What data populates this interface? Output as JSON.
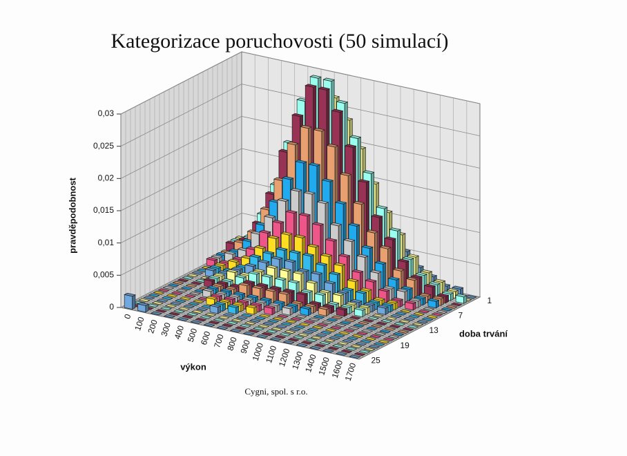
{
  "chart_data": {
    "type": "bar3d",
    "title": "Kategorizace poruchovosti (50 simulací)",
    "y_label": "pravděpodobnost",
    "x_label": "výkon",
    "z_label": "doba trvání",
    "footer": "Cygni, spol. s r.o.",
    "categories": [
      "0",
      "100",
      "200",
      "300",
      "400",
      "500",
      "600",
      "700",
      "800",
      "900",
      "1000",
      "1100",
      "1200",
      "1300",
      "1400",
      "1500",
      "1600",
      "1700"
    ],
    "ylim": [
      0,
      0.03
    ],
    "yticks": [
      0,
      {
        "value": 0.005,
        "label": "0,005"
      },
      {
        "value": 0.01,
        "label": "0,01"
      },
      {
        "value": 0.015,
        "label": "0,015"
      },
      {
        "value": 0.02,
        "label": "0,02"
      },
      {
        "value": 0.025,
        "label": "0,025"
      },
      {
        "value": 0.03,
        "label": "0,03"
      }
    ],
    "grid": true,
    "series": [
      {
        "name": "1",
        "color": "#6fa8dc",
        "values": [
          0.001,
          0.002,
          0.004,
          0.007,
          0.011,
          0.015,
          0.018,
          0.018,
          0.016,
          0.013,
          0.01,
          0.007,
          0.005,
          0.003,
          0.002,
          0.001,
          0.001,
          0
        ]
      },
      {
        "name": null,
        "color": "#ffff99",
        "values": [
          0.002,
          0.003,
          0.006,
          0.011,
          0.017,
          0.023,
          0.027,
          0.027,
          0.024,
          0.02,
          0.015,
          0.011,
          0.008,
          0.005,
          0.003,
          0.002,
          0.001,
          0
        ]
      },
      {
        "name": null,
        "color": "#99ffee",
        "values": [
          0.002,
          0.003,
          0.007,
          0.012,
          0.019,
          0.026,
          0.03,
          0.03,
          0.027,
          0.022,
          0.017,
          0.012,
          0.009,
          0.005,
          0.003,
          0.002,
          0.001,
          0.001
        ]
      },
      {
        "name": null,
        "color": "#993355",
        "values": [
          0.002,
          0.003,
          0.006,
          0.011,
          0.018,
          0.024,
          0.029,
          0.029,
          0.026,
          0.021,
          0.016,
          0.011,
          0.008,
          0.005,
          0.003,
          0.002,
          0.001,
          0
        ]
      },
      {
        "name": null,
        "color": "#e8a070",
        "values": [
          0.001,
          0.003,
          0.005,
          0.009,
          0.014,
          0.02,
          0.023,
          0.023,
          0.021,
          0.017,
          0.013,
          0.009,
          0.007,
          0.004,
          0.003,
          0.001,
          0.001,
          0
        ]
      },
      {
        "name": null,
        "color": "#22aaee",
        "values": [
          0.001,
          0.002,
          0.004,
          0.007,
          0.011,
          0.015,
          0.018,
          0.018,
          0.016,
          0.013,
          0.01,
          0.007,
          0.005,
          0.003,
          0.002,
          0.001,
          0.001,
          0
        ]
      },
      {
        "name": "7",
        "color": "#cccccc",
        "values": [
          0.001,
          0.002,
          0.003,
          0.006,
          0.009,
          0.012,
          0.014,
          0.014,
          0.013,
          0.01,
          0.008,
          0.006,
          0.004,
          0.002,
          0.002,
          0.001,
          0,
          0
        ]
      },
      {
        "name": null,
        "color": "#ee5588",
        "values": [
          0.001,
          0.001,
          0.002,
          0.004,
          0.007,
          0.009,
          0.011,
          0.011,
          0.01,
          0.008,
          0.006,
          0.004,
          0.003,
          0.002,
          0.001,
          0.001,
          0,
          0
        ]
      },
      {
        "name": null,
        "color": "#ffdd22",
        "values": [
          0,
          0.001,
          0.002,
          0.003,
          0.005,
          0.007,
          0.008,
          0.008,
          0.007,
          0.006,
          0.005,
          0.003,
          0.002,
          0.001,
          0.001,
          0,
          0,
          0
        ]
      },
      {
        "name": null,
        "color": "#33bbee",
        "values": [
          0,
          0.001,
          0.001,
          0.002,
          0.004,
          0.005,
          0.006,
          0.006,
          0.006,
          0.005,
          0.004,
          0.002,
          0.002,
          0.001,
          0.001,
          0,
          0,
          0
        ]
      },
      {
        "name": null,
        "color": "#6fa8dc",
        "values": [
          0,
          0.001,
          0.001,
          0.002,
          0.003,
          0.004,
          0.005,
          0.005,
          0.004,
          0.004,
          0.003,
          0.002,
          0.001,
          0.001,
          0.001,
          0,
          0,
          0
        ]
      },
      {
        "name": null,
        "color": "#ffff99",
        "values": [
          0,
          0,
          0.001,
          0.002,
          0.002,
          0.003,
          0.004,
          0.004,
          0.004,
          0.003,
          0.002,
          0.002,
          0.001,
          0.001,
          0,
          0,
          0,
          0
        ]
      },
      {
        "name": "13",
        "color": "#99ffee",
        "values": [
          0,
          0,
          0.001,
          0.001,
          0.002,
          0.003,
          0.003,
          0.003,
          0.003,
          0.002,
          0.002,
          0.001,
          0.001,
          0.001,
          0,
          0,
          0,
          0
        ]
      },
      {
        "name": null,
        "color": "#993355",
        "values": [
          0,
          0,
          0.001,
          0.001,
          0.001,
          0.002,
          0.002,
          0.002,
          0.002,
          0.002,
          0.001,
          0.001,
          0.001,
          0,
          0,
          0,
          0,
          0
        ]
      },
      {
        "name": null,
        "color": "#e8a070",
        "values": [
          0,
          0,
          0,
          0.001,
          0.001,
          0.002,
          0.002,
          0.002,
          0.002,
          0.001,
          0.001,
          0.001,
          0,
          0,
          0,
          0,
          0,
          0
        ]
      },
      {
        "name": null,
        "color": "#22aaee",
        "values": [
          0,
          0,
          0,
          0.001,
          0.001,
          0.001,
          0.001,
          0.001,
          0.001,
          0.001,
          0.001,
          0,
          0,
          0,
          0,
          0,
          0,
          0
        ]
      },
      {
        "name": null,
        "color": "#cccccc",
        "values": [
          0,
          0,
          0,
          0.001,
          0.001,
          0.001,
          0.001,
          0.001,
          0.001,
          0.001,
          0,
          0,
          0,
          0,
          0,
          0,
          0,
          0
        ]
      },
      {
        "name": null,
        "color": "#ee5588",
        "values": [
          0,
          0,
          0,
          0,
          0.001,
          0.001,
          0.001,
          0.001,
          0.001,
          0,
          0,
          0,
          0,
          0,
          0,
          0,
          0,
          0
        ]
      },
      {
        "name": "19",
        "color": "#ffdd22",
        "values": [
          0,
          0,
          0,
          0,
          0.001,
          0.001,
          0.001,
          0.001,
          0,
          0,
          0,
          0,
          0,
          0,
          0,
          0,
          0,
          0
        ]
      },
      {
        "name": null,
        "color": "#33bbee",
        "values": [
          0,
          0,
          0,
          0,
          0,
          0.001,
          0.001,
          0,
          0,
          0,
          0,
          0,
          0,
          0,
          0,
          0,
          0,
          0
        ]
      },
      {
        "name": null,
        "color": "#6fa8dc",
        "values": [
          0,
          0,
          0,
          0,
          0,
          0.001,
          0,
          0,
          0,
          0,
          0,
          0,
          0,
          0,
          0,
          0,
          0,
          0
        ]
      },
      {
        "name": null,
        "color": "#ffff99",
        "values": [
          0,
          0,
          0,
          0,
          0,
          0,
          0,
          0,
          0,
          0,
          0,
          0,
          0,
          0,
          0,
          0,
          0,
          0
        ]
      },
      {
        "name": null,
        "color": "#99ffee",
        "values": [
          0,
          0,
          0,
          0,
          0,
          0,
          0,
          0,
          0,
          0,
          0,
          0,
          0,
          0,
          0,
          0,
          0,
          0
        ]
      },
      {
        "name": null,
        "color": "#993355",
        "values": [
          0,
          0,
          0,
          0,
          0,
          0,
          0,
          0,
          0,
          0,
          0,
          0,
          0,
          0,
          0,
          0,
          0,
          0
        ]
      },
      {
        "name": "25",
        "color": "#6fa8dc",
        "values": [
          0.002,
          0.001,
          0,
          0,
          0,
          0,
          0,
          0,
          0,
          0,
          0,
          0,
          0,
          0,
          0,
          0,
          0,
          0
        ]
      }
    ]
  }
}
